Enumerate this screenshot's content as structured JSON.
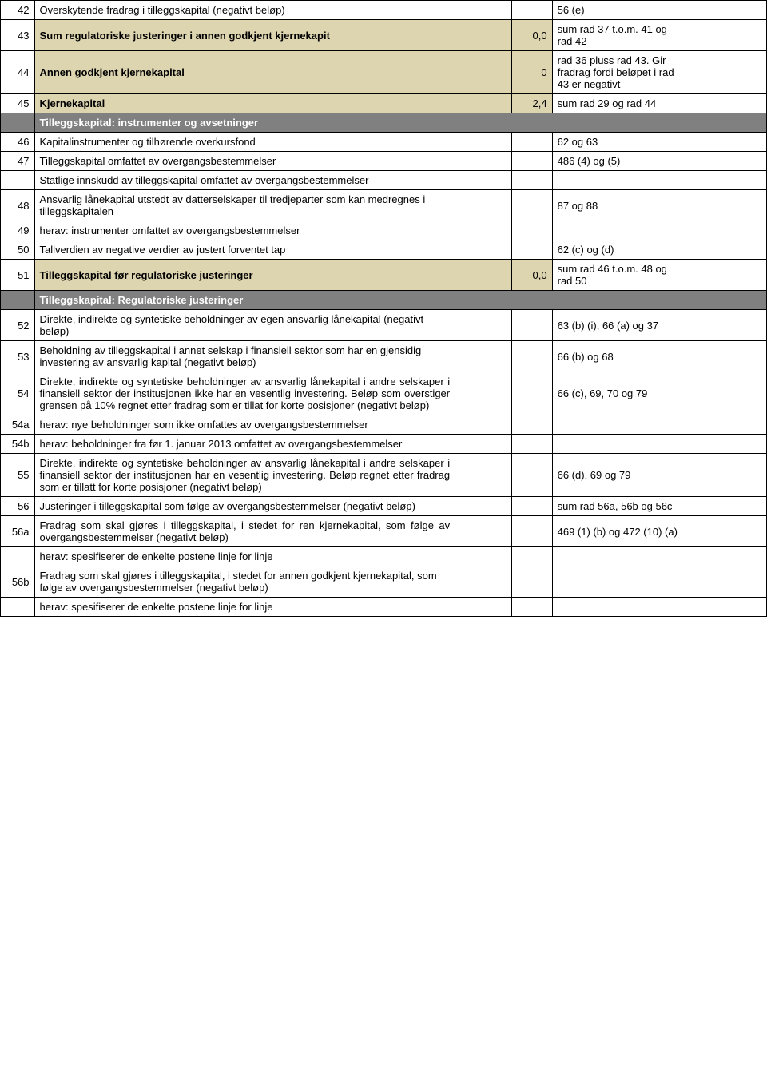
{
  "rows": [
    {
      "num": "42",
      "desc": "Overskytende fradrag i tilleggskapital (negativt beløp)",
      "val1": "",
      "val2": "",
      "ref": "56 (e)",
      "last": "",
      "beige": false,
      "bold": false
    },
    {
      "num": "43",
      "desc": "Sum regulatoriske justeringer i annen godkjent kjernekapit",
      "val1": "",
      "val2": "0,0",
      "ref": "sum rad 37 t.o.m. 41 og rad 42",
      "last": "",
      "beige": true,
      "bold": true
    },
    {
      "num": "44",
      "desc": "Annen godkjent kjernekapital",
      "val1": "",
      "val2": "0",
      "ref": "rad 36 pluss rad 43. Gir fradrag fordi beløpet i rad 43 er negativt",
      "last": "",
      "beige": true,
      "bold": true
    },
    {
      "num": "45",
      "desc": "Kjernekapital",
      "val1": "",
      "val2": "2,4",
      "ref": "sum rad 29 og rad 44",
      "last": "",
      "beige": true,
      "bold": true
    }
  ],
  "section1": "Tilleggskapital: instrumenter og avsetninger",
  "rows2": [
    {
      "num": "46",
      "desc": "Kapitalinstrumenter og tilhørende overkursfond",
      "val1": "",
      "val2": "",
      "ref": "62 og 63",
      "last": ""
    },
    {
      "num": "47",
      "desc": "Tilleggskapital omfattet av overgangsbestemmelser",
      "val1": "",
      "val2": "",
      "ref": "486 (4) og (5)",
      "last": ""
    },
    {
      "num": "",
      "desc": "Statlige innskudd av tilleggskapital omfattet av overgangsbestemmelser",
      "val1": "",
      "val2": "",
      "ref": "",
      "last": ""
    },
    {
      "num": "48",
      "desc": "Ansvarlig lånekapital utstedt av datterselskaper til tredjeparter som kan medregnes i tilleggskapitalen",
      "val1": "",
      "val2": "",
      "ref": "87 og 88",
      "last": ""
    },
    {
      "num": "49",
      "desc": "herav: instrumenter omfattet av overgangsbestemmelser",
      "val1": "",
      "val2": "",
      "ref": "",
      "last": ""
    },
    {
      "num": "50",
      "desc": "Tallverdien av negative verdier av justert forventet tap",
      "val1": "",
      "val2": "",
      "ref": "62 (c) og (d)",
      "last": ""
    },
    {
      "num": "51",
      "desc": "Tilleggskapital før regulatoriske justeringer",
      "val1": "",
      "val2": "0,0",
      "ref": "sum rad 46 t.o.m. 48 og rad 50",
      "last": "",
      "beige": true,
      "bold": true
    }
  ],
  "section2": "Tilleggskapital: Regulatoriske justeringer",
  "rows3": [
    {
      "num": "52",
      "desc": "Direkte, indirekte og syntetiske beholdninger av egen ansvarlig lånekapital (negativt beløp)",
      "val1": "",
      "val2": "",
      "ref": "63 (b) (i), 66 (a) og 37",
      "last": ""
    },
    {
      "num": "53",
      "desc": "Beholdning av tilleggskapital i annet selskap i finansiell sektor som har en gjensidig investering av ansvarlig kapital (negativt beløp)",
      "val1": "",
      "val2": "",
      "ref": "66 (b) og 68",
      "last": ""
    },
    {
      "num": "54",
      "desc": "Direkte, indirekte og syntetiske beholdninger av ansvarlig lånekapital i andre selskaper i finansiell sektor der institusjonen ikke har en vesentlig investering. Beløp som overstiger grensen på 10% regnet etter fradrag som er tillat for korte posisjoner (negativt beløp)",
      "val1": "",
      "val2": "",
      "ref": "66 (c), 69, 70 og 79",
      "last": "",
      "justify": true
    },
    {
      "num": "54a",
      "desc": "herav: nye beholdninger som ikke omfattes av overgangsbestemmelser",
      "val1": "",
      "val2": "",
      "ref": "",
      "last": ""
    },
    {
      "num": "54b",
      "desc": "herav: beholdninger fra før 1. januar 2013 omfattet av overgangsbestemmelser",
      "val1": "",
      "val2": "",
      "ref": "",
      "last": ""
    },
    {
      "num": "55",
      "desc": "Direkte, indirekte og syntetiske beholdninger av ansvarlig lånekapital i andre selskaper i finansiell sektor der institusjonen har en vesentlig investering. Beløp regnet etter fradrag som er tillatt for korte posisjoner (negativt beløp)",
      "val1": "",
      "val2": "",
      "ref": "66 (d), 69 og 79",
      "last": "",
      "justify": true
    },
    {
      "num": "56",
      "desc": "Justeringer i tilleggskapital som følge av overgangsbestemmelser (negativt beløp)",
      "val1": "",
      "val2": "",
      "ref": "sum rad 56a, 56b og 56c",
      "last": ""
    },
    {
      "num": "56a",
      "desc": "Fradrag som skal gjøres i tilleggskapital, i stedet for ren kjernekapital, som følge av overgangsbestemmelser (negativt beløp)",
      "val1": "",
      "val2": "",
      "ref": "469 (1) (b) og 472 (10) (a)",
      "last": "",
      "justify": true
    },
    {
      "num": "",
      "desc": "herav: spesifiserer de enkelte postene linje for linje",
      "val1": "",
      "val2": "",
      "ref": "",
      "last": ""
    },
    {
      "num": "56b",
      "desc": "Fradrag som skal gjøres i tilleggskapital, i stedet for annen godkjent kjernekapital, som følge av overgangsbestemmelser (negativt beløp)",
      "val1": "",
      "val2": "",
      "ref": "",
      "last": ""
    },
    {
      "num": "",
      "desc": "herav: spesifiserer de enkelte postene linje for linje",
      "val1": "",
      "val2": "",
      "ref": "",
      "last": ""
    }
  ]
}
